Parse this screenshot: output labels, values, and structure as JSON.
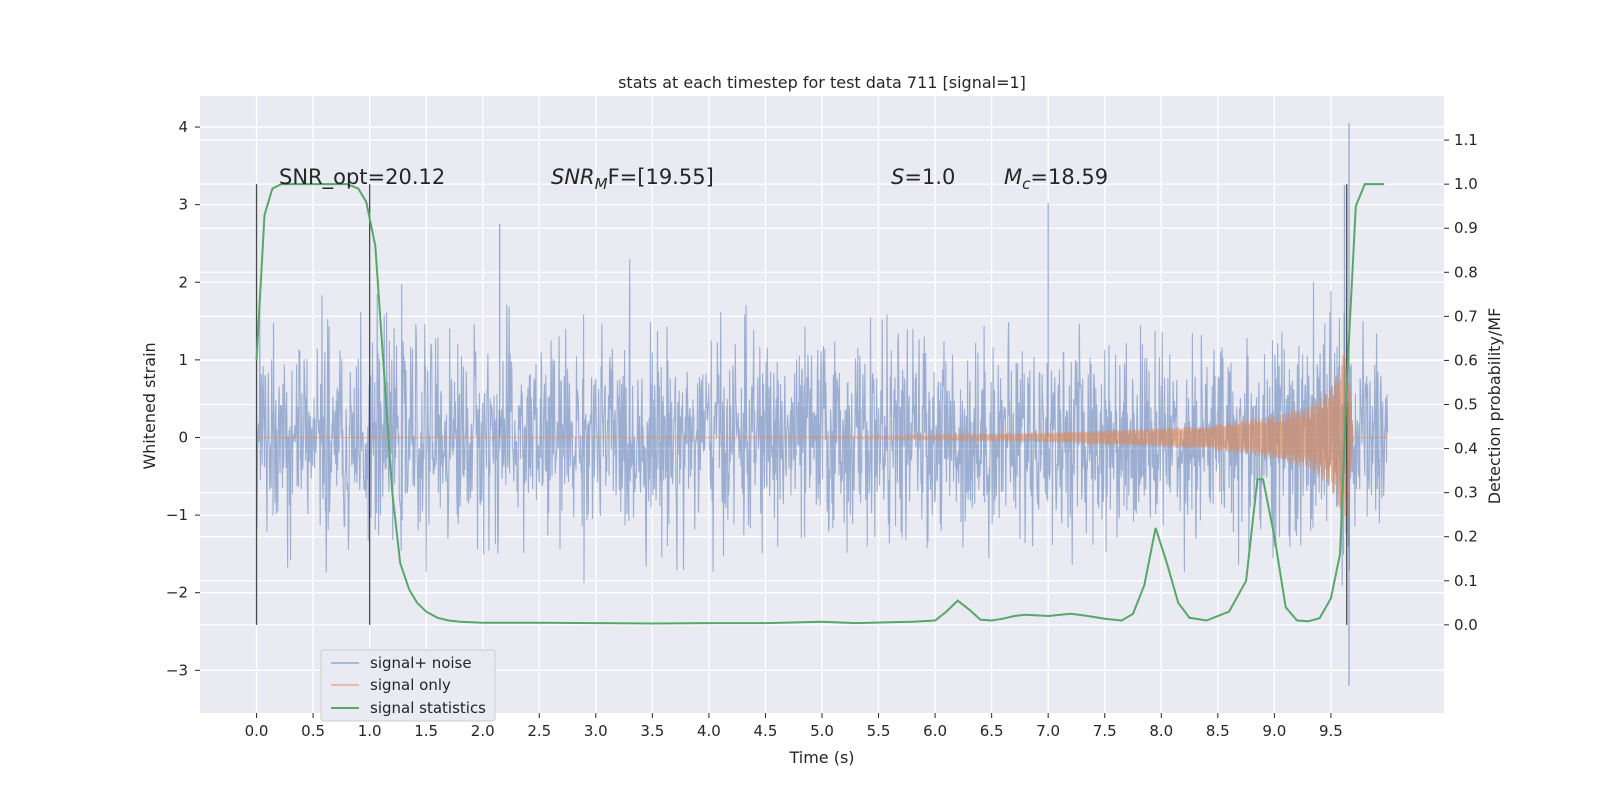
{
  "chart_data": {
    "type": "line",
    "title": "stats at each timestep for test data 711 [signal=1]",
    "xlabel": "Time (s)",
    "ylabel_left": "Whitened strain",
    "ylabel_right": "Detection probability/MF",
    "xlim": [
      -0.5,
      10.5
    ],
    "ylim_left": [
      -3.55,
      4.4
    ],
    "ylim_right": [
      -0.2,
      1.2
    ],
    "x_ticks": [
      "0.0",
      "0.5",
      "1.0",
      "1.5",
      "2.0",
      "2.5",
      "3.0",
      "3.5",
      "4.0",
      "4.5",
      "5.0",
      "5.5",
      "6.0",
      "6.5",
      "7.0",
      "7.5",
      "8.0",
      "8.5",
      "9.0",
      "9.5"
    ],
    "y_ticks_left": [
      "−3",
      "−2",
      "−1",
      "0",
      "1",
      "2",
      "3",
      "4"
    ],
    "y_ticks_right": [
      "0.0",
      "0.1",
      "0.2",
      "0.3",
      "0.4",
      "0.5",
      "0.6",
      "0.7",
      "0.8",
      "0.9",
      "1.0",
      "1.1"
    ],
    "grid": true,
    "legend_position": "lower-left",
    "annotations": {
      "snr_opt": "SNR_opt=20.12",
      "snr_mf_sym": "SNR",
      "snr_mf_sub": "M",
      "snr_mf_rest": "F=[19.55]",
      "s_sym": "S",
      "s_rest": "=1.0",
      "mc_sym": "M",
      "mc_sub": "c",
      "mc_rest": "=18.59"
    },
    "vertical_markers_x": [
      0.0,
      1.0,
      9.64
    ],
    "series": [
      {
        "name": "signal+ noise",
        "color": "#4c72b0",
        "axis": "left",
        "x_range": [
          0.0,
          10.0
        ],
        "envelope_typical": [
          -1.4,
          1.4
        ],
        "notable_peaks": [
          {
            "x": 2.15,
            "y": 2.75
          },
          {
            "x": 7.0,
            "y": 3.02
          },
          {
            "x": 9.62,
            "y": 3.25
          },
          {
            "x": 9.66,
            "y": 4.05
          },
          {
            "x": 9.66,
            "y": -3.2
          }
        ]
      },
      {
        "name": "signal only",
        "color": "#dd8452",
        "axis": "left",
        "description_points": {
          "x": [
            0.0,
            5.0,
            6.0,
            7.0,
            8.0,
            8.5,
            9.0,
            9.3,
            9.5,
            9.6,
            9.64,
            9.7,
            10.0
          ],
          "amplitude": [
            0.0,
            0.01,
            0.03,
            0.06,
            0.12,
            0.17,
            0.28,
            0.4,
            0.65,
            1.0,
            1.35,
            0.0,
            0.0
          ]
        }
      },
      {
        "name": "signal statistics",
        "color": "#55a868",
        "axis": "right",
        "x": [
          0.0,
          0.07,
          0.14,
          0.22,
          0.3,
          0.4,
          0.5,
          0.6,
          0.7,
          0.8,
          0.9,
          0.97,
          1.05,
          1.12,
          1.2,
          1.27,
          1.35,
          1.42,
          1.5,
          1.6,
          1.7,
          1.8,
          2.0,
          2.5,
          3.0,
          3.5,
          4.0,
          4.5,
          5.0,
          5.3,
          5.6,
          5.8,
          6.0,
          6.1,
          6.2,
          6.3,
          6.4,
          6.5,
          6.6,
          6.7,
          6.8,
          7.0,
          7.2,
          7.35,
          7.5,
          7.65,
          7.75,
          7.85,
          7.95,
          8.05,
          8.15,
          8.25,
          8.4,
          8.6,
          8.75,
          8.85,
          8.9,
          9.0,
          9.1,
          9.2,
          9.3,
          9.4,
          9.5,
          9.58,
          9.65,
          9.72,
          9.8,
          9.9,
          9.97
        ],
        "y": [
          0.6,
          0.93,
          0.99,
          1.0,
          1.0,
          1.0,
          1.0,
          1.0,
          1.0,
          1.0,
          0.99,
          0.96,
          0.86,
          0.6,
          0.3,
          0.14,
          0.08,
          0.05,
          0.03,
          0.016,
          0.01,
          0.007,
          0.005,
          0.005,
          0.004,
          0.003,
          0.004,
          0.004,
          0.007,
          0.004,
          0.006,
          0.007,
          0.01,
          0.03,
          0.055,
          0.035,
          0.012,
          0.01,
          0.014,
          0.02,
          0.023,
          0.02,
          0.025,
          0.02,
          0.014,
          0.01,
          0.025,
          0.09,
          0.22,
          0.14,
          0.05,
          0.016,
          0.01,
          0.03,
          0.1,
          0.33,
          0.33,
          0.2,
          0.04,
          0.01,
          0.008,
          0.015,
          0.06,
          0.16,
          0.6,
          0.95,
          1.0,
          1.0,
          1.0
        ]
      }
    ]
  }
}
